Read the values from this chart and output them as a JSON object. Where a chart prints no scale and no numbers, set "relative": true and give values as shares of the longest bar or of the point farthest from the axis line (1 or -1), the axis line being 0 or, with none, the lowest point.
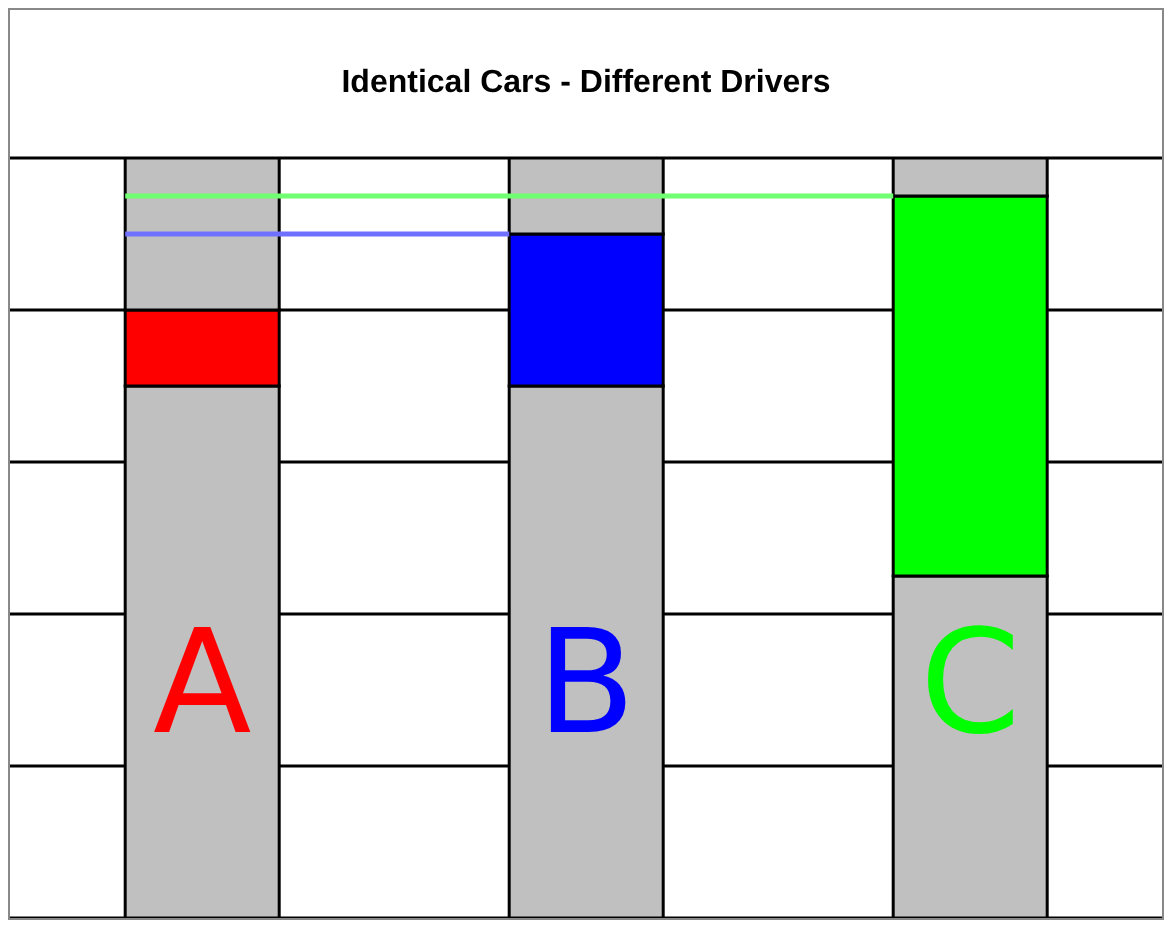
{
  "chart_data": {
    "type": "bar",
    "title": "Identical Cars - Different Drivers",
    "categories": [
      "A",
      "B",
      "C"
    ],
    "stacked": true,
    "relative": true,
    "grid": "y",
    "series": [
      {
        "color": "#c0c0c0",
        "values": [
          0.7,
          0.7,
          0.45
        ]
      },
      {
        "colors": [
          "#ff0000",
          "#0000ff",
          "#00ff00"
        ],
        "values": [
          0.1,
          0.2,
          0.5
        ]
      },
      {
        "color": "#c0c0c0",
        "values": [
          0.2,
          0.1,
          0.05
        ]
      }
    ],
    "ref_lines": [
      {
        "axis": "y",
        "value": 0.9,
        "color": "#7070ff"
      },
      {
        "axis": "y",
        "value": 0.95,
        "color": "#70ff70"
      }
    ]
  }
}
